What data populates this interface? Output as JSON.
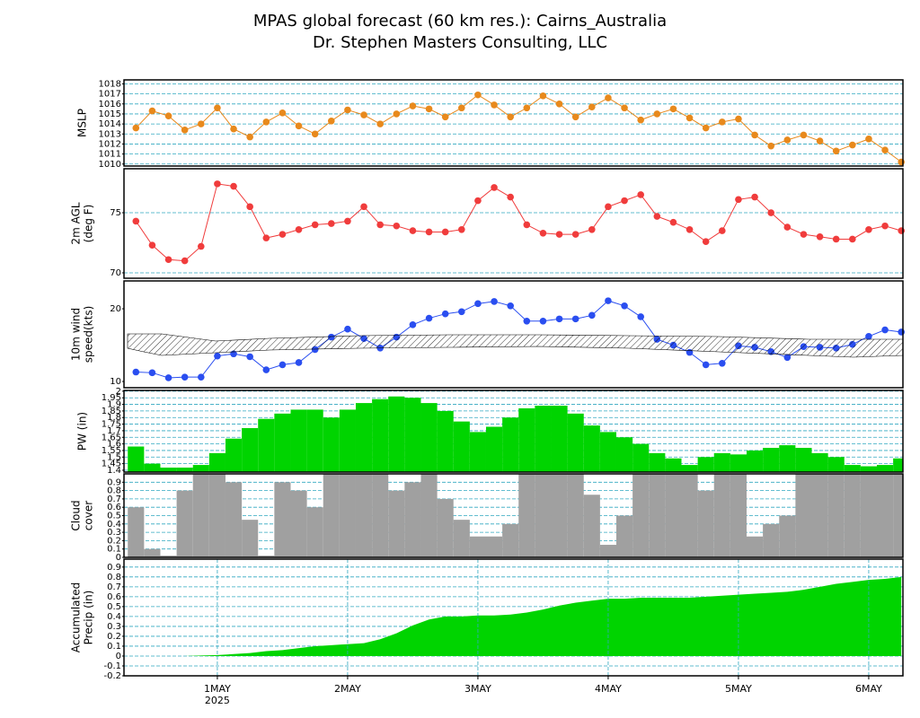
{
  "title": [
    "MPAS global forecast (60 km res.): Cairns_Australia",
    "Dr. Stephen Masters Consulting, LLC"
  ],
  "chart_data": [
    {
      "type": "line",
      "ylabel": [
        "MSLP"
      ],
      "color": "#e8891c",
      "x": [
        -15,
        -12,
        -9,
        -6,
        -3,
        0,
        3,
        6,
        9,
        12,
        15,
        18,
        21,
        24,
        27,
        30,
        33,
        36,
        39,
        42,
        45,
        48,
        51,
        54,
        57,
        60,
        63,
        66,
        69,
        72,
        75,
        78,
        81,
        84,
        87,
        90,
        93,
        96,
        99,
        102,
        105,
        108,
        111,
        114,
        117,
        120,
        123,
        126
      ],
      "values": [
        1013.6,
        1015.3,
        1014.8,
        1013.4,
        1014.0,
        1015.6,
        1013.5,
        1012.7,
        1014.2,
        1015.1,
        1013.8,
        1013.0,
        1014.3,
        1015.4,
        1014.9,
        1014.0,
        1015.0,
        1015.8,
        1015.5,
        1014.7,
        1015.6,
        1016.9,
        1015.9,
        1014.7,
        1015.6,
        1016.8,
        1016.0,
        1014.7,
        1015.7,
        1016.6,
        1015.6,
        1014.4,
        1015.0,
        1015.5,
        1014.6,
        1013.6,
        1014.2,
        1014.5,
        1012.9,
        1011.8,
        1012.4,
        1012.9,
        1012.3,
        1011.3,
        1011.9,
        1012.5,
        1011.4,
        1010.2
      ],
      "xlim": [
        -17.2,
        126.3
      ],
      "ylim": [
        1009.8,
        1018.4
      ],
      "yticks": [
        1010,
        1011,
        1012,
        1013,
        1014,
        1015,
        1016,
        1017,
        1018
      ],
      "grid": true
    },
    {
      "type": "line",
      "ylabel": [
        "2m AGL",
        "(deg F)"
      ],
      "color": "#f03c3c",
      "x": [
        -15,
        -12,
        -9,
        -6,
        -3,
        0,
        3,
        6,
        9,
        12,
        15,
        18,
        21,
        24,
        27,
        30,
        33,
        36,
        39,
        42,
        45,
        48,
        51,
        54,
        57,
        60,
        63,
        66,
        69,
        72,
        75,
        78,
        81,
        84,
        87,
        90,
        93,
        96,
        99,
        102,
        105,
        108,
        111,
        114,
        117,
        120,
        123,
        126
      ],
      "values": [
        74.3,
        72.3,
        71.1,
        71.0,
        72.2,
        77.4,
        77.2,
        75.5,
        72.9,
        73.2,
        73.6,
        74.0,
        74.1,
        74.3,
        75.5,
        74.0,
        73.9,
        73.5,
        73.4,
        73.4,
        73.6,
        76.0,
        77.1,
        76.3,
        74.0,
        73.3,
        73.2,
        73.2,
        73.6,
        75.5,
        76.0,
        76.5,
        74.7,
        74.2,
        73.6,
        72.6,
        73.5,
        76.1,
        76.3,
        75.0,
        73.8,
        73.2,
        73.0,
        72.8,
        72.8,
        73.6,
        73.9,
        73.5
      ],
      "xlim": [
        -17.2,
        126.3
      ],
      "ylim": [
        69.55,
        78.66
      ],
      "yticks": [
        70,
        75
      ],
      "grid": true
    },
    {
      "type": "line",
      "ylabel": [
        "10m wind",
        "speed(kts)"
      ],
      "color": "#2a4ef0",
      "x": [
        -15,
        -12,
        -9,
        -6,
        -3,
        0,
        3,
        6,
        9,
        12,
        15,
        18,
        21,
        24,
        27,
        30,
        33,
        36,
        39,
        42,
        45,
        48,
        51,
        54,
        57,
        60,
        63,
        66,
        69,
        72,
        75,
        78,
        81,
        84,
        87,
        90,
        93,
        96,
        99,
        102,
        105,
        108,
        111,
        114,
        117,
        120,
        123,
        126
      ],
      "values": [
        11.3,
        11.2,
        10.5,
        10.6,
        10.6,
        13.5,
        13.8,
        13.4,
        11.6,
        12.3,
        12.6,
        14.4,
        16.1,
        17.2,
        15.9,
        14.6,
        16.1,
        17.8,
        18.7,
        19.3,
        19.6,
        20.7,
        21.0,
        20.4,
        18.3,
        18.3,
        18.6,
        18.6,
        19.1,
        21.1,
        20.4,
        18.9,
        15.8,
        15.0,
        14.0,
        12.3,
        12.5,
        14.9,
        14.7,
        14.1,
        13.3,
        14.8,
        14.7,
        14.6,
        15.1,
        16.2,
        17.1,
        16.8
      ],
      "xlim": [
        -17.2,
        126.3
      ],
      "ylim": [
        9.14,
        23.83
      ],
      "yticks": [
        10,
        20
      ],
      "grid": false
    },
    {
      "type": "bar",
      "ylabel": [
        "PW (in)"
      ],
      "color": "#00d400",
      "x": [
        -15,
        -12,
        -9,
        -6,
        -3,
        0,
        3,
        6,
        9,
        12,
        15,
        18,
        21,
        24,
        27,
        30,
        33,
        36,
        39,
        42,
        45,
        48,
        51,
        54,
        57,
        60,
        63,
        66,
        69,
        72,
        75,
        78,
        81,
        84,
        87,
        90,
        93,
        96,
        99,
        102,
        105,
        108,
        111,
        114,
        117,
        120,
        123,
        126
      ],
      "values": [
        1.58,
        1.45,
        1.42,
        1.42,
        1.44,
        1.53,
        1.64,
        1.72,
        1.79,
        1.83,
        1.86,
        1.86,
        1.8,
        1.86,
        1.91,
        1.94,
        1.96,
        1.95,
        1.91,
        1.85,
        1.77,
        1.69,
        1.73,
        1.8,
        1.87,
        1.89,
        1.89,
        1.83,
        1.74,
        1.69,
        1.65,
        1.6,
        1.53,
        1.49,
        1.44,
        1.5,
        1.53,
        1.52,
        1.55,
        1.57,
        1.59,
        1.57,
        1.53,
        1.5,
        1.44,
        1.43,
        1.44,
        1.49
      ],
      "xlim": [
        -17.2,
        126.3
      ],
      "ylim": [
        1.386,
        2.006
      ],
      "yticks": [
        1.4,
        1.45,
        1.5,
        1.55,
        1.6,
        1.65,
        1.7,
        1.75,
        1.8,
        1.85,
        1.9,
        1.95,
        2
      ],
      "grid": true
    },
    {
      "type": "bar",
      "ylabel": [
        "Cloud",
        "cover"
      ],
      "color": "#a0a0a0",
      "x": [
        -15,
        -12,
        -9,
        -6,
        -3,
        0,
        3,
        6,
        9,
        12,
        15,
        18,
        21,
        24,
        27,
        30,
        33,
        36,
        39,
        42,
        45,
        48,
        51,
        54,
        57,
        60,
        63,
        66,
        69,
        72,
        75,
        78,
        81,
        84,
        87,
        90,
        93,
        96,
        99,
        102,
        105,
        108,
        111,
        114,
        117,
        120,
        123,
        126
      ],
      "values": [
        0.6,
        0.1,
        0.02,
        0.8,
        1,
        1,
        0.9,
        0.45,
        0.02,
        0.9,
        0.8,
        0.6,
        1,
        1,
        1,
        1,
        0.8,
        0.9,
        1,
        0.7,
        0.45,
        0.25,
        0.25,
        0.4,
        1,
        1,
        1,
        1,
        0.75,
        0.15,
        0.5,
        1,
        1,
        1,
        1,
        0.8,
        1,
        1,
        0.25,
        0.4,
        0.5,
        1,
        1,
        1,
        1,
        1,
        1,
        1
      ],
      "xlim": [
        -17.2,
        126.3
      ],
      "ylim": [
        0,
        1
      ],
      "yticks": [
        0,
        0.1,
        0.2,
        0.3,
        0.4,
        0.5,
        0.6,
        0.7,
        0.8,
        0.9
      ],
      "grid": true
    },
    {
      "type": "area",
      "ylabel": [
        "Accumulated",
        "Precip (in)"
      ],
      "color": "#00d400",
      "x": [
        -15,
        -12,
        -9,
        -6,
        -3,
        0,
        3,
        6,
        9,
        12,
        15,
        18,
        21,
        24,
        27,
        30,
        33,
        36,
        39,
        42,
        45,
        48,
        51,
        54,
        57,
        60,
        63,
        66,
        69,
        72,
        75,
        78,
        81,
        84,
        87,
        90,
        93,
        96,
        99,
        102,
        105,
        108,
        111,
        114,
        117,
        120,
        123,
        126
      ],
      "values": [
        0,
        0,
        0,
        0,
        0.005,
        0.01,
        0.02,
        0.03,
        0.05,
        0.06,
        0.08,
        0.1,
        0.11,
        0.12,
        0.13,
        0.17,
        0.23,
        0.31,
        0.37,
        0.4,
        0.4,
        0.41,
        0.41,
        0.42,
        0.44,
        0.47,
        0.51,
        0.54,
        0.56,
        0.58,
        0.58,
        0.59,
        0.59,
        0.59,
        0.59,
        0.6,
        0.61,
        0.62,
        0.63,
        0.64,
        0.65,
        0.67,
        0.7,
        0.73,
        0.75,
        0.77,
        0.78,
        0.8
      ],
      "xlim": [
        -17.2,
        126.3
      ],
      "ylim": [
        -0.2,
        0.98
      ],
      "yticks": [
        -0.2,
        -0.1,
        0,
        0.1,
        0.2,
        0.3,
        0.4,
        0.5,
        0.6,
        0.7,
        0.8,
        0.9
      ],
      "grid": true,
      "xticks": [
        {
          "value": 0,
          "label": "1MAY"
        },
        {
          "value": 24,
          "label": "2MAY"
        },
        {
          "value": 48,
          "label": "3MAY"
        },
        {
          "value": 72,
          "label": "4MAY"
        },
        {
          "value": 96,
          "label": "5MAY"
        },
        {
          "value": 120,
          "label": "6MAY"
        }
      ],
      "xgrid": true,
      "year_label": "2025"
    }
  ]
}
